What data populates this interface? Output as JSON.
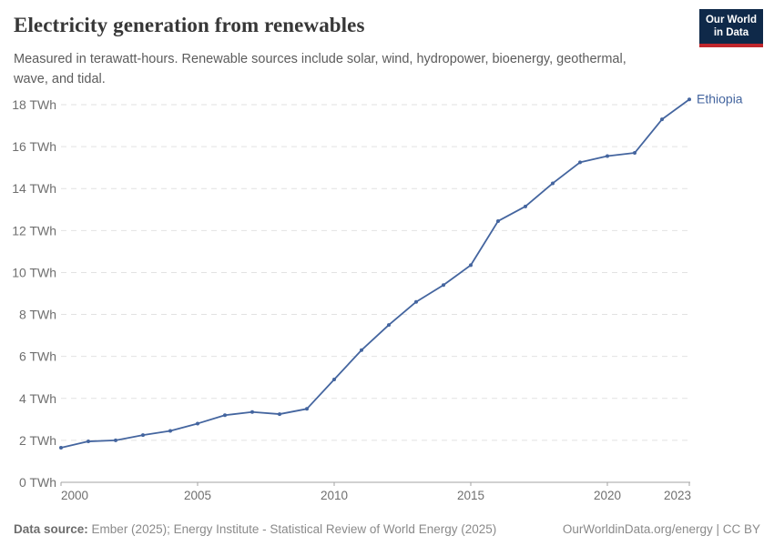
{
  "header": {
    "title": "Electricity generation from renewables",
    "logo": {
      "line1": "Our World",
      "line2": "in Data"
    }
  },
  "subtitle": "Measured in terawatt-hours. Renewable sources include solar, wind, hydropower, bioenergy, geothermal, wave, and tidal.",
  "chart_data": {
    "type": "line",
    "title": "Electricity generation from renewables",
    "unit": "TWh",
    "xlabel": "",
    "ylabel": "",
    "xlim": [
      2000,
      2023
    ],
    "ylim": [
      0,
      18
    ],
    "grid": "horizontal dashed gridlines on",
    "legend_position": "label at end of line",
    "series": [
      {
        "name": "Ethiopia",
        "color": "#44659f",
        "x": [
          2000,
          2001,
          2002,
          2003,
          2004,
          2005,
          2006,
          2007,
          2008,
          2009,
          2010,
          2011,
          2012,
          2013,
          2014,
          2015,
          2016,
          2017,
          2018,
          2019,
          2020,
          2021,
          2022,
          2023
        ],
        "values": [
          1.65,
          1.95,
          2.0,
          2.25,
          2.45,
          2.8,
          3.2,
          3.35,
          3.25,
          3.5,
          4.9,
          6.3,
          7.5,
          8.6,
          9.4,
          10.35,
          12.45,
          13.15,
          14.25,
          15.25,
          15.55,
          15.7,
          17.3,
          18.25
        ]
      }
    ],
    "yticks": [
      {
        "value": 0,
        "label": "0 TWh"
      },
      {
        "value": 2,
        "label": "2 TWh"
      },
      {
        "value": 4,
        "label": "4 TWh"
      },
      {
        "value": 6,
        "label": "6 TWh"
      },
      {
        "value": 8,
        "label": "8 TWh"
      },
      {
        "value": 10,
        "label": "10 TWh"
      },
      {
        "value": 12,
        "label": "12 TWh"
      },
      {
        "value": 14,
        "label": "14 TWh"
      },
      {
        "value": 16,
        "label": "16 TWh"
      },
      {
        "value": 18,
        "label": "18 TWh"
      }
    ],
    "xticks": [
      {
        "value": 2000,
        "label": "2000"
      },
      {
        "value": 2005,
        "label": "2005"
      },
      {
        "value": 2010,
        "label": "2010"
      },
      {
        "value": 2015,
        "label": "2015"
      },
      {
        "value": 2020,
        "label": "2020"
      },
      {
        "value": 2023,
        "label": "2023"
      }
    ]
  },
  "footer": {
    "source_label": "Data source:",
    "source_text": "Ember (2025); Energy Institute - Statistical Review of World Energy (2025)",
    "right_text": "OurWorldinData.org/energy | CC BY"
  },
  "colors": {
    "line": "#44659f",
    "entity_label": "#44659f",
    "gridline": "#e2e2e2",
    "axis_line": "#a3a3a3",
    "tick_text": "#6f6f6f",
    "logo_bg": "#0f2949",
    "logo_bar": "#c0262c"
  }
}
